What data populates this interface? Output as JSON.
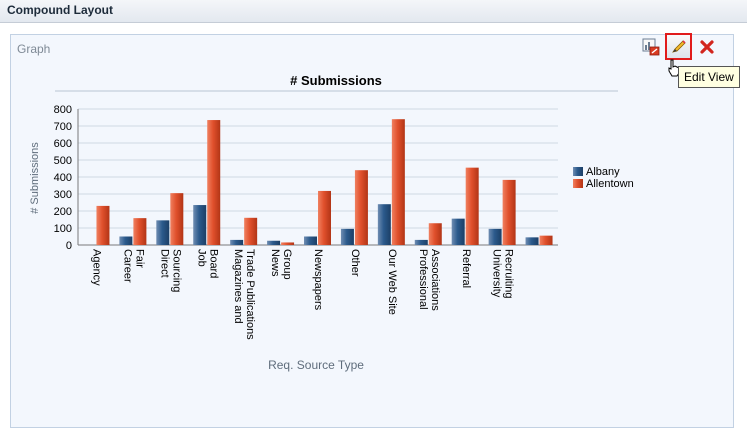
{
  "header": {
    "title": "Compound Layout"
  },
  "panel": {
    "title": "Graph"
  },
  "toolbar": {
    "icons": [
      "graph-view-icon",
      "pencil-edit-icon",
      "close-icon"
    ],
    "edit_tooltip": "Edit View"
  },
  "colors": {
    "albany": "#2b5a8c",
    "allentown": "#e0502c",
    "panel_bg": "#f3f7fd",
    "edit_highlight": "#e11b1b"
  },
  "chart_data": {
    "type": "bar",
    "title": "# Submissions",
    "xlabel": "Req. Source Type",
    "ylabel": "# Submissions",
    "ylim": [
      0,
      800
    ],
    "yticks": [
      0,
      100,
      200,
      300,
      400,
      500,
      600,
      700,
      800
    ],
    "grid": true,
    "legend_position": "right",
    "categories": [
      "Agency",
      "Career Fair",
      "Direct Sourcing",
      "Job Board",
      "Magazines and Trade Publications",
      "News Group",
      "Newspapers",
      "Other",
      "Our Web Site",
      "Professional Associations",
      "Referral",
      "University Recruiting",
      ""
    ],
    "category_label_lines": [
      [
        "Agency"
      ],
      [
        "Career",
        "Fair"
      ],
      [
        "Direct",
        "Sourcing"
      ],
      [
        "Job",
        "Board"
      ],
      [
        "Magazines and",
        "Trade Publications"
      ],
      [
        "News",
        "Group"
      ],
      [
        "Newspapers"
      ],
      [
        "Other"
      ],
      [
        "Our Web Site"
      ],
      [
        "Professional",
        "Associations"
      ],
      [
        "Referral"
      ],
      [
        "University",
        "Recruiting"
      ],
      []
    ],
    "series": [
      {
        "name": "Albany",
        "color": "#2b5a8c",
        "values": [
          0,
          50,
          145,
          235,
          30,
          25,
          50,
          95,
          240,
          30,
          155,
          95,
          45
        ]
      },
      {
        "name": "Allentown",
        "color": "#e0502c",
        "values": [
          230,
          158,
          305,
          735,
          160,
          15,
          318,
          440,
          740,
          128,
          455,
          383,
          55
        ]
      }
    ]
  }
}
